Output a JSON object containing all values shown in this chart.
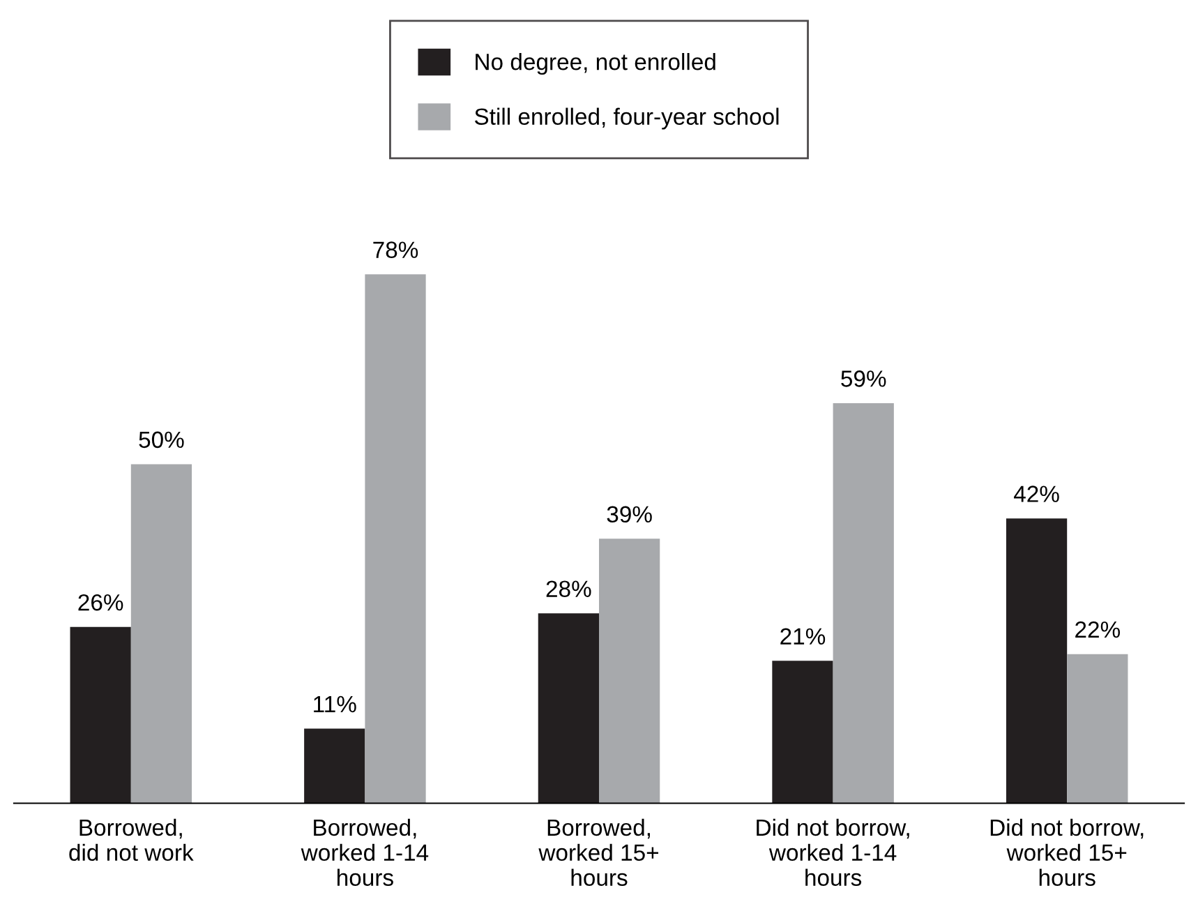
{
  "chart_data": {
    "type": "bar",
    "categories": [
      "Borrowed,\ndid not work",
      "Borrowed,\nworked 1-14\nhours",
      "Borrowed,\nworked 15+\nhours",
      "Did not borrow,\nworked 1-14\nhours",
      "Did not borrow,\nworked 15+\nhours"
    ],
    "series": [
      {
        "name": "No degree, not enrolled",
        "color": "#231f20",
        "values": [
          26,
          11,
          28,
          21,
          42
        ],
        "value_labels": [
          "26%",
          "11%",
          "28%",
          "21%",
          "42%"
        ]
      },
      {
        "name": "Still enrolled, four-year school",
        "color": "#a7a9ac",
        "values": [
          50,
          78,
          39,
          59,
          22
        ],
        "value_labels": [
          "50%",
          "78%",
          "39%",
          "59%",
          "22%"
        ]
      }
    ],
    "legend": "top",
    "grid": false
  }
}
